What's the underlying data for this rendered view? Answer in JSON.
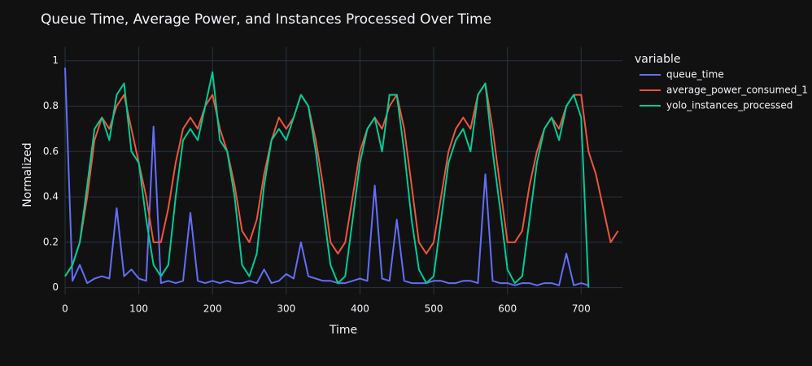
{
  "chart_data": {
    "type": "line",
    "title": "Queue Time, Average Power, and Instances Processed Over Time",
    "x_label": "Time",
    "y_label": "Normalized",
    "legend_title": "variable",
    "legend_position": "right",
    "grid": true,
    "xlim": [
      0,
      756
    ],
    "ylim": [
      -0.03,
      1.06
    ],
    "xticks": [
      0,
      100,
      200,
      300,
      400,
      500,
      600,
      700
    ],
    "yticks": [
      0,
      0.2,
      0.4,
      0.6,
      0.8,
      1
    ],
    "x": [
      0,
      10,
      20,
      30,
      40,
      50,
      60,
      70,
      80,
      90,
      100,
      110,
      120,
      130,
      140,
      150,
      160,
      170,
      180,
      190,
      200,
      210,
      220,
      230,
      240,
      250,
      260,
      270,
      280,
      290,
      300,
      310,
      320,
      330,
      340,
      350,
      360,
      370,
      380,
      390,
      400,
      410,
      420,
      430,
      440,
      450,
      460,
      470,
      480,
      490,
      500,
      510,
      520,
      530,
      540,
      550,
      560,
      570,
      580,
      590,
      600,
      610,
      620,
      630,
      640,
      650,
      660,
      670,
      680,
      690,
      700,
      710,
      720,
      730,
      740,
      750
    ],
    "series": [
      {
        "name": "queue_time",
        "color": "#636efa",
        "values": [
          0.97,
          0.03,
          0.1,
          0.02,
          0.04,
          0.05,
          0.04,
          0.35,
          0.05,
          0.08,
          0.04,
          0.03,
          0.71,
          0.02,
          0.03,
          0.02,
          0.03,
          0.33,
          0.03,
          0.02,
          0.03,
          0.02,
          0.03,
          0.02,
          0.02,
          0.03,
          0.02,
          0.08,
          0.02,
          0.03,
          0.06,
          0.04,
          0.2,
          0.05,
          0.04,
          0.03,
          0.03,
          0.02,
          0.02,
          0.03,
          0.04,
          0.03,
          0.45,
          0.04,
          0.03,
          0.3,
          0.03,
          0.02,
          0.02,
          0.02,
          0.03,
          0.03,
          0.02,
          0.02,
          0.03,
          0.03,
          0.02,
          0.5,
          0.03,
          0.02,
          0.02,
          0.01,
          0.02,
          0.02,
          0.01,
          0.02,
          0.02,
          0.01,
          0.15,
          0.01,
          0.02,
          0.01,
          null,
          null,
          null,
          null
        ]
      },
      {
        "name": "average_power_consumed_1",
        "color": "#EF553B",
        "values": [
          0.05,
          0.1,
          0.2,
          0.4,
          0.65,
          0.75,
          0.7,
          0.8,
          0.85,
          0.7,
          0.55,
          0.4,
          0.2,
          0.2,
          0.35,
          0.55,
          0.7,
          0.75,
          0.7,
          0.8,
          0.85,
          0.7,
          0.6,
          0.45,
          0.25,
          0.2,
          0.3,
          0.5,
          0.65,
          0.75,
          0.7,
          0.75,
          0.85,
          0.8,
          0.65,
          0.45,
          0.2,
          0.15,
          0.2,
          0.4,
          0.6,
          0.7,
          0.75,
          0.7,
          0.8,
          0.85,
          0.7,
          0.45,
          0.2,
          0.15,
          0.2,
          0.4,
          0.6,
          0.7,
          0.75,
          0.7,
          0.85,
          0.9,
          0.7,
          0.45,
          0.2,
          0.2,
          0.25,
          0.45,
          0.6,
          0.7,
          0.75,
          0.7,
          0.8,
          0.85,
          0.85,
          0.6,
          0.5,
          0.35,
          0.2,
          0.25
        ]
      },
      {
        "name": "yolo_instances_processed",
        "color": "#00cc96",
        "values": [
          0.05,
          0.1,
          0.2,
          0.45,
          0.7,
          0.75,
          0.65,
          0.85,
          0.9,
          0.6,
          0.55,
          0.3,
          0.1,
          0.05,
          0.1,
          0.4,
          0.65,
          0.7,
          0.65,
          0.8,
          0.95,
          0.65,
          0.6,
          0.4,
          0.1,
          0.05,
          0.15,
          0.45,
          0.65,
          0.7,
          0.65,
          0.75,
          0.85,
          0.8,
          0.6,
          0.35,
          0.1,
          0.02,
          0.05,
          0.3,
          0.55,
          0.7,
          0.75,
          0.6,
          0.85,
          0.85,
          0.6,
          0.3,
          0.08,
          0.02,
          0.05,
          0.3,
          0.55,
          0.65,
          0.7,
          0.6,
          0.85,
          0.9,
          0.6,
          0.35,
          0.08,
          0.02,
          0.05,
          0.3,
          0.55,
          0.7,
          0.75,
          0.65,
          0.8,
          0.85,
          0.75,
          0,
          null,
          null,
          null,
          null
        ]
      }
    ]
  }
}
